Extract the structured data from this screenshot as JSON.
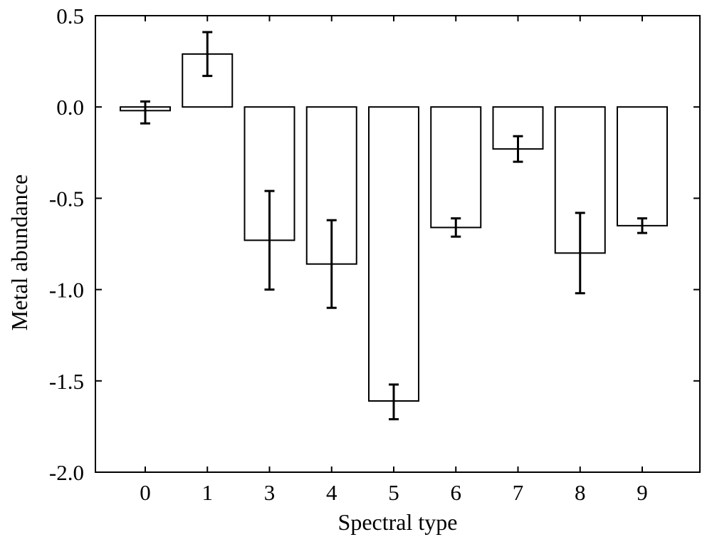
{
  "chart_data": {
    "type": "bar",
    "categories": [
      "0",
      "1",
      "3",
      "4",
      "5",
      "6",
      "7",
      "8",
      "9"
    ],
    "values": [
      -0.02,
      0.29,
      -0.73,
      -0.86,
      -1.61,
      -0.66,
      -0.23,
      -0.8,
      -0.65
    ],
    "error_low": [
      -0.09,
      0.17,
      -1.0,
      -1.1,
      -1.71,
      -0.71,
      -0.3,
      -1.02,
      -0.69
    ],
    "error_high": [
      0.03,
      0.41,
      -0.46,
      -0.62,
      -1.52,
      -0.61,
      -0.16,
      -0.58,
      -0.61
    ],
    "title": "",
    "xlabel": "Spectral type",
    "ylabel": "Metal abundance",
    "ylim": [
      -2.0,
      0.5
    ],
    "yticks": [
      0.5,
      0.0,
      -0.5,
      -1.0,
      -1.5,
      -2.0
    ],
    "ytick_labels": [
      "0.5",
      "0.0",
      "-0.5",
      "-1.0",
      "-1.5",
      "-2.0"
    ],
    "grid": false,
    "legend": "none",
    "colors": {
      "bar_fill": "#ffffff",
      "bar_edge": "#000000",
      "error_bar": "#000000"
    }
  }
}
